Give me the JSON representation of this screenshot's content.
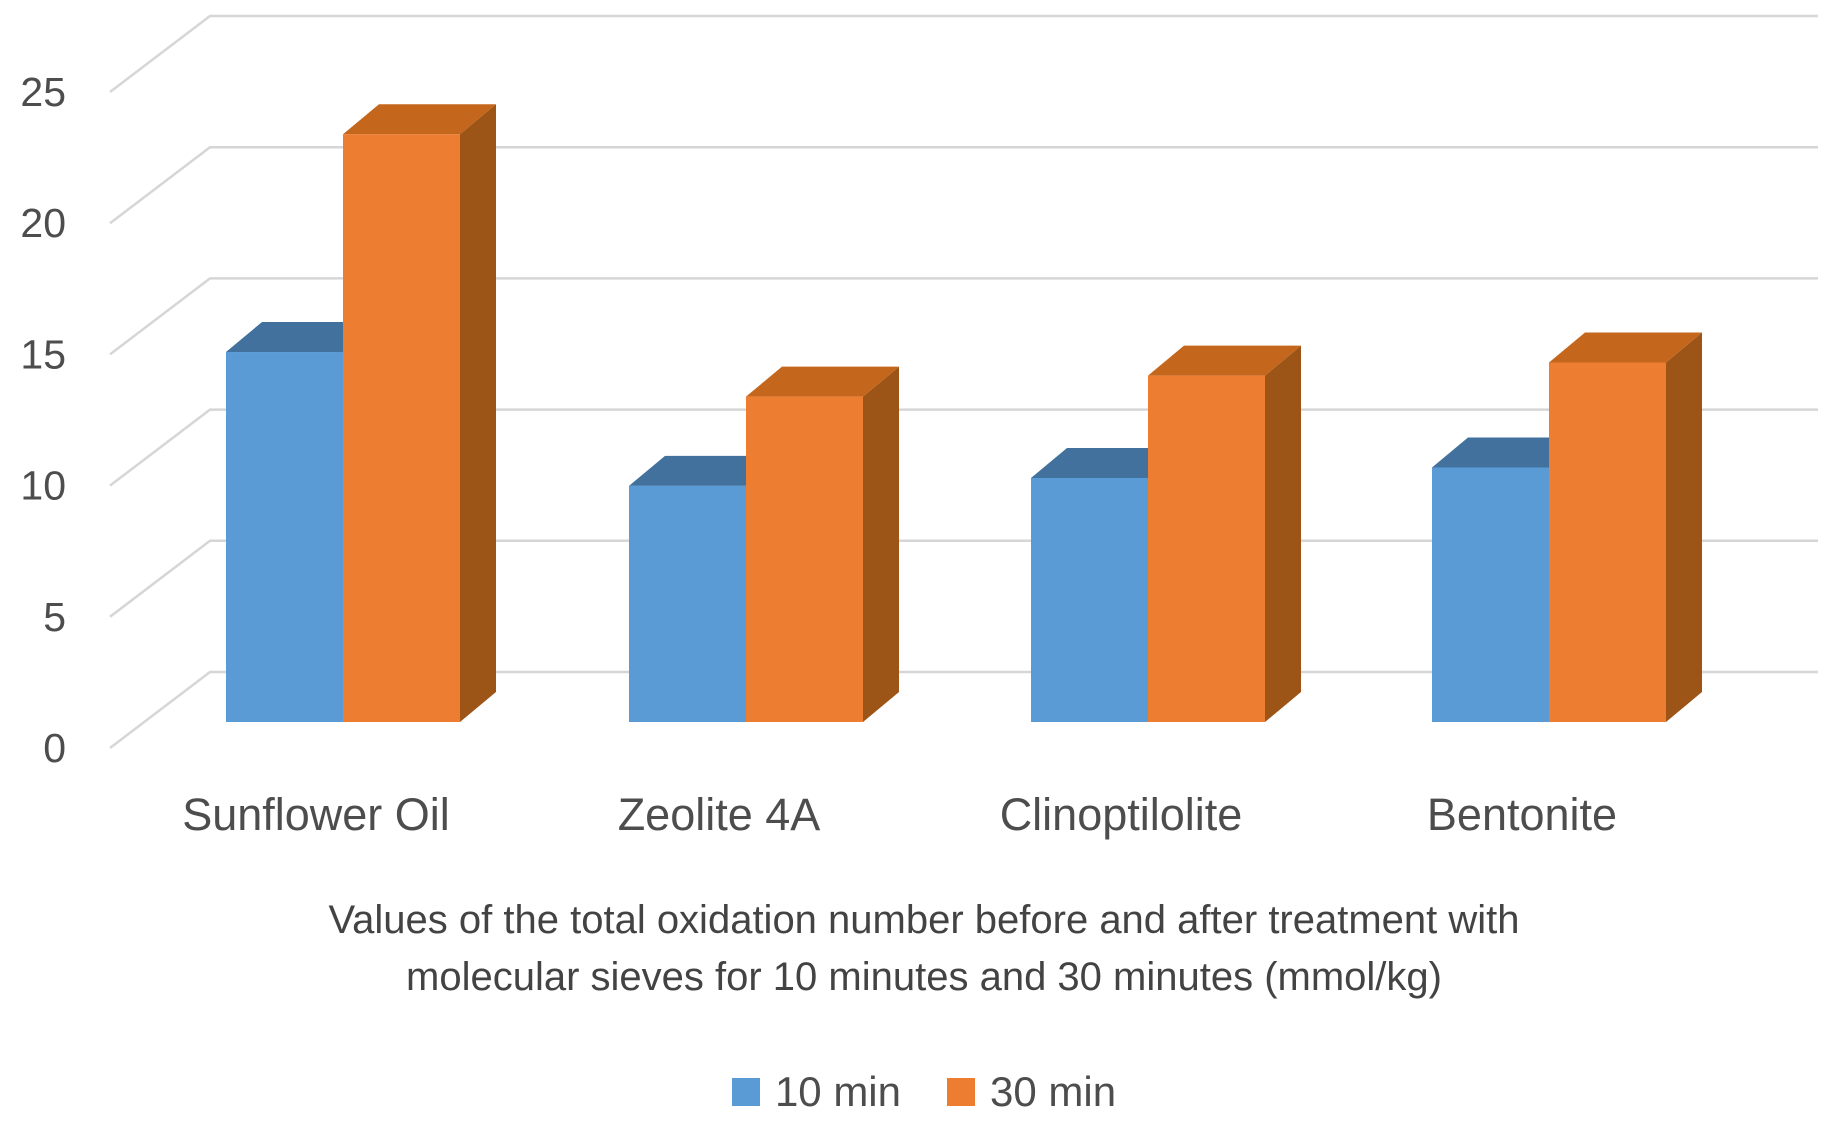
{
  "chart_data": {
    "type": "bar",
    "variant": "3d-clustered-column",
    "categories": [
      "Sunflower Oil",
      "Zeolite 4A",
      "Clinoptilolite",
      "Bentonite"
    ],
    "series": [
      {
        "name": "10 min",
        "color": "#5B9BD5",
        "color_top": "#41719C",
        "color_side": "#41719C",
        "values": [
          14.1,
          9.0,
          9.3,
          9.7
        ]
      },
      {
        "name": "30 min",
        "color": "#ED7D31",
        "color_top": "#C4661B",
        "color_side": "#9C5417",
        "values": [
          22.4,
          12.4,
          13.2,
          13.7
        ]
      }
    ],
    "title": "Values of the total oxidation number before and after treatment with molecular sieves for 10 minutes and 30 minutes (mmol/kg)",
    "xlabel": "",
    "ylabel": "",
    "y_axis": {
      "min": 0,
      "max": 25,
      "step": 5,
      "ticks": [
        0,
        5,
        10,
        15,
        20,
        25
      ]
    },
    "ylim": [
      0,
      25
    ],
    "grid": true,
    "grid_color": "#D6D6D6",
    "text_color": "#4d4d4d",
    "legend_position": "bottom"
  },
  "title_block": {
    "line1": "Values of the total oxidation number before and after treatment with",
    "line2": "molecular sieves for 10 minutes and 30 minutes (mmol/kg)"
  },
  "legend": {
    "items": [
      {
        "label": "10 min",
        "color": "#5B9BD5"
      },
      {
        "label": "30 min",
        "color": "#ED7D31"
      }
    ]
  }
}
